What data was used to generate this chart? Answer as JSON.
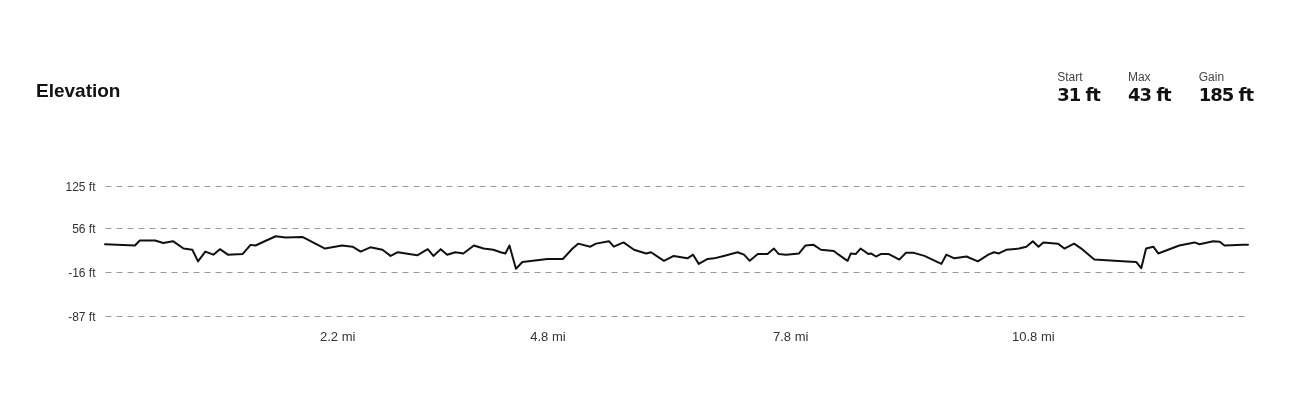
{
  "chart_data": {
    "type": "line",
    "title": "Elevation",
    "annotations": [
      "Start",
      "31 ft",
      "Max",
      "43 ft",
      "Gain",
      "185 ft"
    ],
    "x": [
      -0.67,
      -0.3,
      -0.24,
      -0.05,
      0.05,
      0.17,
      0.3,
      0.41,
      0.48,
      0.57,
      0.67,
      0.75,
      0.85,
      1.03,
      1.13,
      1.19,
      1.44,
      1.56,
      1.77,
      2.05,
      2.26,
      2.39,
      2.49,
      2.61,
      2.76,
      2.86,
      2.95,
      3.19,
      3.32,
      3.39,
      3.48,
      3.56,
      3.66,
      3.76,
      3.89,
      4.01,
      4.13,
      4.22,
      4.28,
      4.33,
      4.41,
      4.49,
      4.8,
      4.99,
      5.11,
      5.18,
      5.33,
      5.4,
      5.56,
      5.62,
      5.74,
      5.87,
      6.02,
      6.08,
      6.24,
      6.36,
      6.53,
      6.6,
      6.67,
      6.78,
      6.86,
      6.98,
      7.15,
      7.23,
      7.3,
      7.4,
      7.52,
      7.6,
      7.66,
      7.75,
      7.91,
      7.99,
      8.09,
      8.18,
      8.34,
      8.4,
      8.51,
      8.55,
      8.61,
      8.67,
      8.77,
      8.8,
      8.86,
      8.92,
      9.02,
      9.15,
      9.23,
      9.33,
      9.46,
      9.67,
      9.73,
      9.83,
      9.98,
      10.12,
      10.25,
      10.32,
      10.38,
      10.47,
      10.63,
      10.72,
      10.8,
      10.87,
      10.93,
      11.11,
      11.19,
      11.31,
      11.4,
      11.56,
      11.96,
      12.08,
      12.14,
      12.2,
      12.29,
      12.35,
      12.61,
      12.8,
      12.86,
      13.03,
      13.11,
      13.17,
      13.4,
      13.46
    ],
    "series": [
      {
        "color": "#111111",
        "values": [
          30,
          28,
          36,
          36,
          32,
          35,
          23,
          21,
          2,
          18,
          13,
          22,
          13,
          14,
          29,
          28,
          43,
          41,
          42,
          23,
          28,
          26,
          18,
          25,
          21,
          11,
          17,
          12,
          22,
          11,
          22,
          13,
          17,
          15,
          28,
          23,
          21,
          17,
          15,
          28,
          -10,
          1,
          6,
          6,
          23,
          31,
          26,
          31,
          35,
          26,
          33,
          21,
          15,
          17,
          3,
          11,
          7,
          13,
          -2,
          6,
          7,
          11,
          17,
          13,
          3,
          14,
          14,
          23,
          14,
          13,
          15,
          28,
          29,
          21,
          19,
          13,
          3,
          15,
          14,
          23,
          14,
          15,
          10,
          14,
          14,
          5,
          16,
          16,
          11,
          -2,
          13,
          7,
          10,
          2,
          13,
          17,
          15,
          21,
          23,
          26,
          35,
          26,
          33,
          31,
          23,
          31,
          23,
          5,
          2,
          1,
          -9,
          23,
          26,
          15,
          28,
          33,
          30,
          35,
          34,
          28,
          29,
          29
        ]
      }
    ],
    "xlim": [
      -0.67,
      13.46
    ],
    "xticks": [
      {
        "value": 2.2,
        "label": "2.2 mi"
      },
      {
        "value": 4.8,
        "label": "4.8 mi"
      },
      {
        "value": 7.8,
        "label": "7.8 mi"
      },
      {
        "value": 10.8,
        "label": "10.8 mi"
      }
    ],
    "ylim": [
      -87,
      125
    ],
    "yticks": [
      {
        "value": -87,
        "label": "-87 ft"
      },
      {
        "value": -16,
        "label": "-16 ft"
      },
      {
        "value": 56,
        "label": "56 ft"
      },
      {
        "value": 125,
        "label": "125 ft"
      }
    ],
    "grid": "y"
  }
}
